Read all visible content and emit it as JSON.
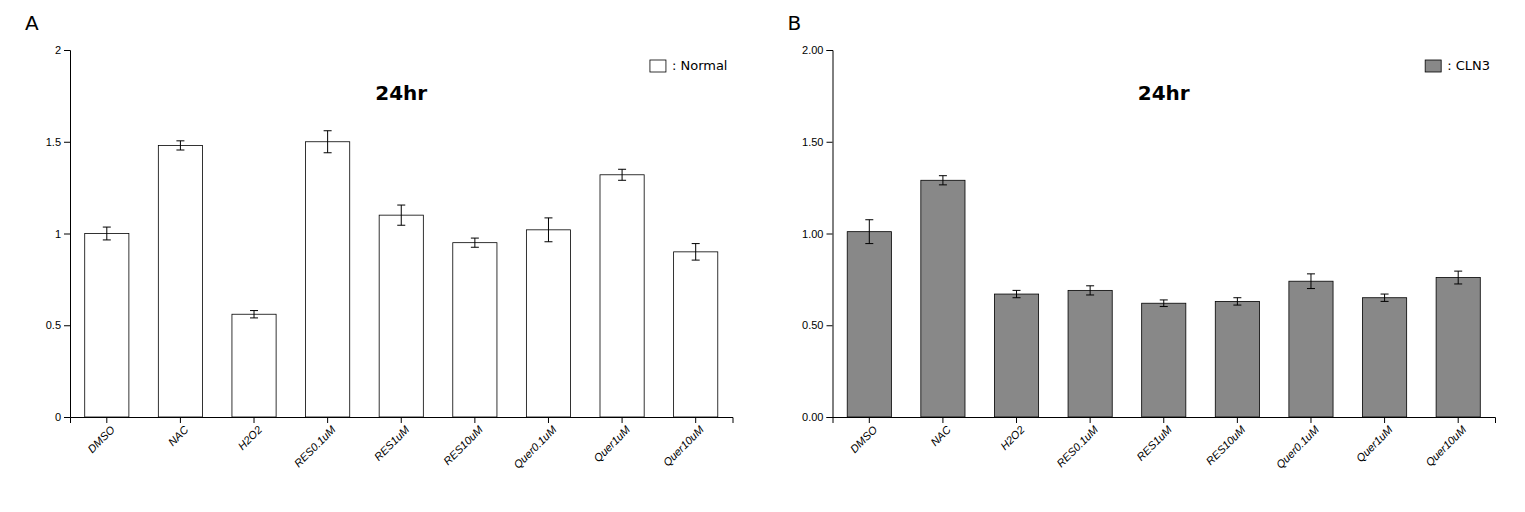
{
  "chart_data": [
    {
      "type": "bar",
      "title": "24hr",
      "annotations": [
        "A"
      ],
      "categories": [
        "DMSO",
        "NAC",
        "H2O2",
        "RES0.1uM",
        "RES1uM",
        "RES10uM",
        "Quer0.1uM",
        "Quer1uM",
        "Quer10uM"
      ],
      "series": [
        {
          "name": ": Normal",
          "color": "white",
          "values": [
            1.0,
            1.48,
            0.56,
            1.5,
            1.1,
            0.95,
            1.02,
            1.32,
            0.9
          ],
          "errors": [
            0.035,
            0.025,
            0.02,
            0.06,
            0.055,
            0.025,
            0.065,
            0.03,
            0.045
          ]
        }
      ],
      "ylim": [
        0,
        2.0
      ],
      "yticks": [
        0,
        0.5,
        1,
        1.5,
        2
      ],
      "legend": "upper right",
      "grid": false
    },
    {
      "type": "bar",
      "title": "24hr",
      "annotations": [
        "B"
      ],
      "categories": [
        "DMSO",
        "NAC",
        "H2O2",
        "RES0.1uM",
        "RES1uM",
        "RES10uM",
        "Quer0.1uM",
        "Quer1uM",
        "Quer10uM"
      ],
      "series": [
        {
          "name": ": CLN3",
          "color": "#888888",
          "values": [
            1.01,
            1.29,
            0.67,
            0.69,
            0.62,
            0.63,
            0.74,
            0.65,
            0.76
          ],
          "errors": [
            0.065,
            0.025,
            0.02,
            0.025,
            0.018,
            0.02,
            0.04,
            0.02,
            0.035
          ]
        }
      ],
      "ylim": [
        0,
        2.0
      ],
      "yticks": [
        {
          "value": 0,
          "label": "0.00"
        },
        {
          "value": 0.5,
          "label": "0.50"
        },
        {
          "value": 1.0,
          "label": "1.00"
        },
        {
          "value": 1.5,
          "label": "1.50"
        },
        {
          "value": 2.0,
          "label": "2.00"
        }
      ],
      "legend": "upper right",
      "grid": false
    }
  ]
}
